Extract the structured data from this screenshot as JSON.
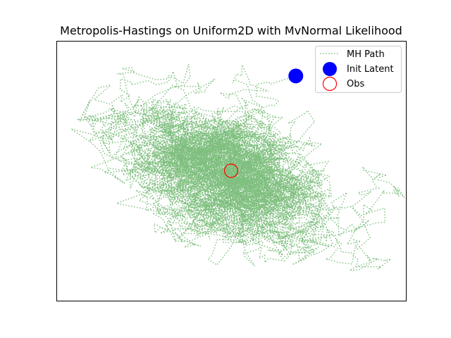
{
  "chart_data": {
    "type": "scatter",
    "title": "Metropolis-Hastings on Uniform2D with MvNormal Likelihood",
    "xlabel": "",
    "ylabel": "",
    "axes_ticks_visible": false,
    "grid": false,
    "legend": {
      "placement": "top-right",
      "entries": [
        "MH Path",
        "Init Latent",
        "Obs"
      ]
    },
    "xlim": [
      -1.0,
      1.0
    ],
    "ylim": [
      -1.0,
      1.0
    ],
    "series": [
      {
        "name": "MH Path",
        "style": "dotted-line",
        "color": "#7fbf7f",
        "distribution": {
          "center": [
            0.0,
            0.0
          ],
          "std_major": 0.34,
          "std_minor": 0.2,
          "angle_deg": -35,
          "num_steps": 6000
        }
      },
      {
        "name": "Init Latent",
        "style": "filled-circle",
        "color": "#0000ff",
        "points": [
          [
            0.37,
            0.73
          ]
        ]
      },
      {
        "name": "Obs",
        "style": "hollow-circle",
        "color": "#ff0000",
        "points": [
          [
            0.0,
            0.0
          ]
        ]
      }
    ]
  }
}
